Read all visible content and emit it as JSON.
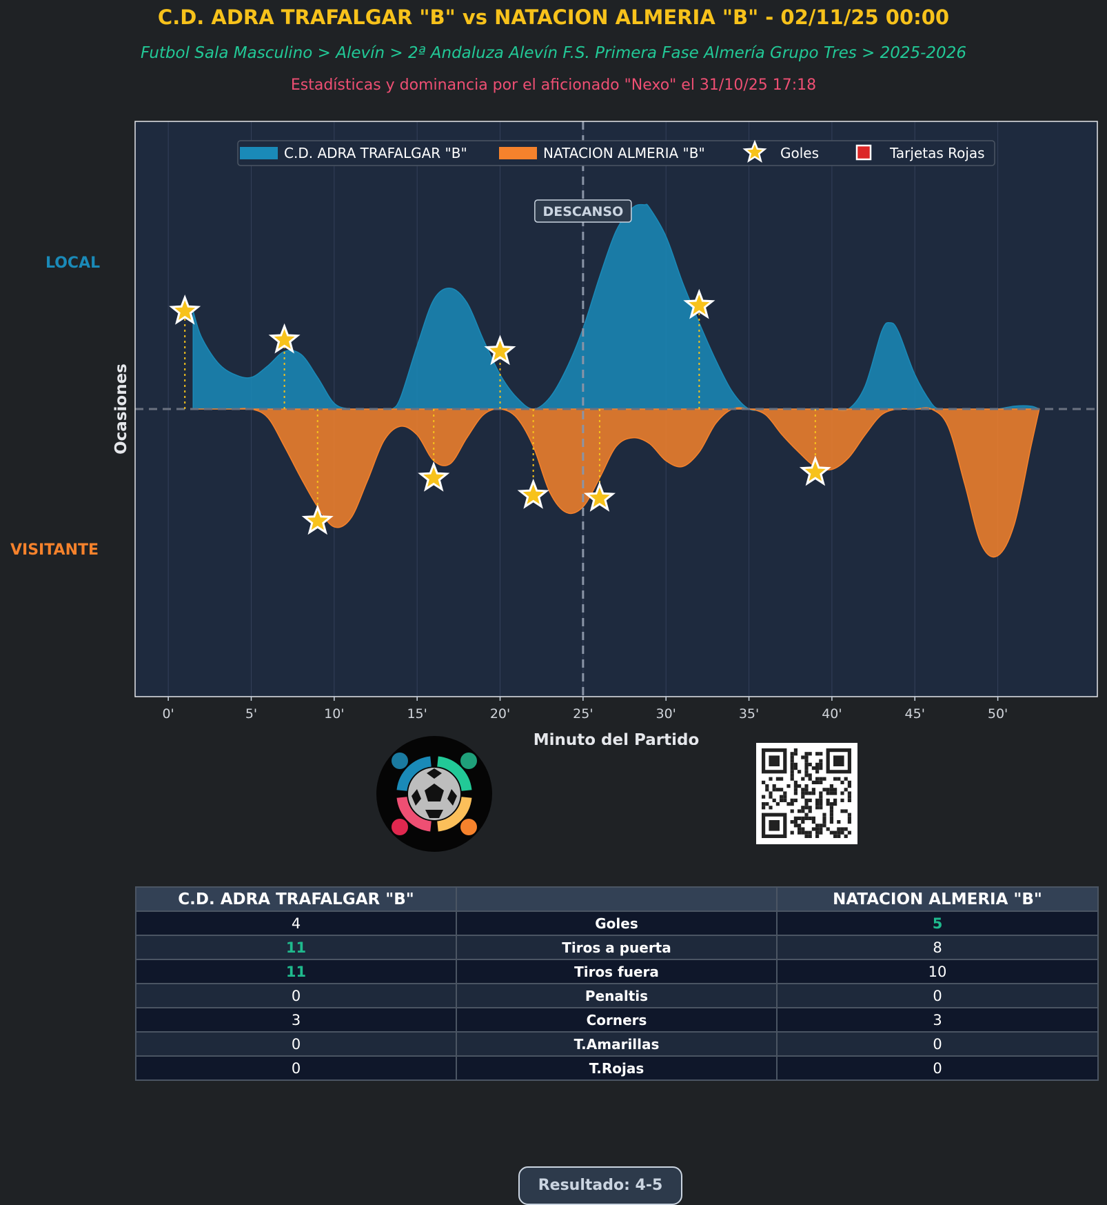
{
  "header": {
    "title": "C.D. ADRA TRAFALGAR \"B\" vs NATACION ALMERIA \"B\" - 02/11/25 00:00",
    "subtitle": "Futbol Sala Masculino > Alevín > 2ª Andaluza Alevín F.S. Primera Fase Almería Grupo Tres > 2025-2026",
    "byline": "Estadísticas y dominancia por el aficionado \"Nexo\" el 31/10/25 17:18"
  },
  "side_labels": {
    "local": "LOCAL",
    "visitante": "VISITANTE"
  },
  "colors": {
    "local": "#1a8ab8",
    "visitante": "#f6822c",
    "goal_star": "#f7c21b",
    "red_card": "#dc2626",
    "plot_bg": "#1e2a3e",
    "page_bg": "#1f2225"
  },
  "chart_data": {
    "type": "area",
    "xlabel": "Minuto del Partido",
    "ylabel": "Ocasiones",
    "xlim": [
      -2,
      56
    ],
    "ylim": [
      -1.0,
      1.0
    ],
    "xticks": [
      0,
      5,
      10,
      15,
      20,
      25,
      30,
      35,
      40,
      45,
      50
    ],
    "xtick_labels": [
      "0'",
      "5'",
      "10'",
      "15'",
      "20'",
      "25'",
      "30'",
      "35'",
      "40'",
      "45'",
      "50'"
    ],
    "halftime": {
      "minute": 25,
      "label": "DESCANSO"
    },
    "legend": {
      "position": "top-center",
      "entries": [
        "C.D. ADRA TRAFALGAR \"B\"",
        "NATACION ALMERIA \"B\"",
        "Goles",
        "Tarjetas Rojas"
      ]
    },
    "series": [
      {
        "name": "C.D. ADRA TRAFALGAR \"B\"",
        "side": "local",
        "x": [
          1.5,
          2,
          3,
          4,
          5,
          6,
          7,
          8,
          9,
          10,
          11,
          12,
          13,
          13.5,
          14,
          15,
          16,
          17,
          18,
          19,
          20,
          21,
          22,
          23,
          24,
          25,
          26,
          27,
          28,
          28.7,
          29,
          30,
          31,
          32,
          33,
          34,
          35,
          36,
          37,
          38,
          39,
          40,
          41,
          42,
          43,
          43.5,
          44,
          45,
          46,
          46.5,
          47,
          48,
          49,
          50,
          51,
          52,
          52.5
        ],
        "values": [
          0.34,
          0.25,
          0.16,
          0.12,
          0.11,
          0.15,
          0.2,
          0.19,
          0.11,
          0.02,
          0,
          0,
          0,
          0,
          0.04,
          0.22,
          0.38,
          0.42,
          0.37,
          0.24,
          0.12,
          0.04,
          0,
          0.04,
          0.14,
          0.28,
          0.46,
          0.62,
          0.7,
          0.71,
          0.7,
          0.6,
          0.44,
          0.3,
          0.17,
          0.06,
          0,
          0,
          0,
          0,
          0,
          0,
          0,
          0.08,
          0.27,
          0.3,
          0.27,
          0.12,
          0.02,
          0,
          0,
          0,
          0,
          0,
          0.01,
          0.01,
          0
        ]
      },
      {
        "name": "NATACION ALMERIA \"B\"",
        "side": "visitante",
        "x": [
          1.5,
          2,
          3,
          4,
          5,
          6,
          7,
          8,
          9,
          10,
          11,
          12,
          13,
          14,
          15,
          16,
          17,
          18,
          19,
          20,
          21,
          22,
          23,
          24,
          25,
          26,
          27,
          28,
          29,
          30,
          31,
          32,
          33,
          34,
          35,
          36,
          37,
          38,
          39,
          40,
          41,
          42,
          43,
          44,
          45,
          46,
          47,
          48,
          49,
          50,
          51,
          52,
          52.5
        ],
        "values": [
          0,
          0,
          0,
          0,
          0,
          -0.03,
          -0.13,
          -0.24,
          -0.34,
          -0.41,
          -0.38,
          -0.25,
          -0.11,
          -0.06,
          -0.09,
          -0.18,
          -0.19,
          -0.1,
          -0.02,
          0,
          -0.03,
          -0.13,
          -0.29,
          -0.36,
          -0.34,
          -0.24,
          -0.13,
          -0.1,
          -0.12,
          -0.18,
          -0.2,
          -0.15,
          -0.05,
          0,
          0,
          -0.02,
          -0.09,
          -0.15,
          -0.2,
          -0.21,
          -0.17,
          -0.09,
          -0.02,
          0,
          0,
          0,
          -0.06,
          -0.26,
          -0.47,
          -0.51,
          -0.4,
          -0.13,
          0
        ]
      }
    ],
    "goals": [
      {
        "team": "local",
        "minute": 1,
        "y": 0.34
      },
      {
        "team": "local",
        "minute": 7,
        "y": 0.24
      },
      {
        "team": "local",
        "minute": 20,
        "y": 0.2
      },
      {
        "team": "local",
        "minute": 32,
        "y": 0.36
      },
      {
        "team": "visitante",
        "minute": 9,
        "y": -0.39
      },
      {
        "team": "visitante",
        "minute": 16,
        "y": -0.24
      },
      {
        "team": "visitante",
        "minute": 22,
        "y": -0.3
      },
      {
        "team": "visitante",
        "minute": 26,
        "y": -0.31
      },
      {
        "team": "visitante",
        "minute": 39,
        "y": -0.22
      }
    ],
    "red_cards": []
  },
  "stats": {
    "header": {
      "home": "C.D. ADRA TRAFALGAR \"B\"",
      "metric": "",
      "away": "NATACION ALMERIA \"B\""
    },
    "rows": [
      {
        "home": "4",
        "metric": "Goles",
        "away": "5",
        "leader": "away"
      },
      {
        "home": "11",
        "metric": "Tiros a puerta",
        "away": "8",
        "leader": "home"
      },
      {
        "home": "11",
        "metric": "Tiros fuera",
        "away": "10",
        "leader": "home"
      },
      {
        "home": "0",
        "metric": "Penaltis",
        "away": "0",
        "leader": ""
      },
      {
        "home": "3",
        "metric": "Corners",
        "away": "3",
        "leader": ""
      },
      {
        "home": "0",
        "metric": "T.Amarillas",
        "away": "0",
        "leader": ""
      },
      {
        "home": "0",
        "metric": "T.Rojas",
        "away": "0",
        "leader": ""
      }
    ]
  },
  "footer": {
    "result": "Resultado: 4-5"
  }
}
